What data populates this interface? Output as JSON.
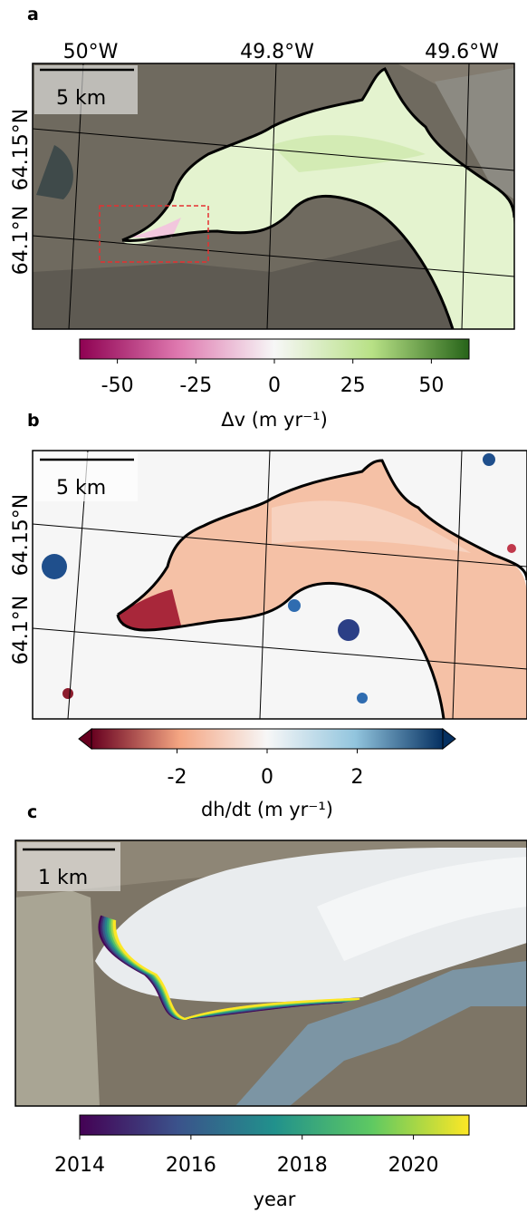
{
  "panels": {
    "a": {
      "label": "a",
      "lon_ticks": [
        "50°W",
        "49.8°W",
        "49.6°W"
      ],
      "lat_ticks": [
        "64.15°N",
        "64.1°N"
      ],
      "scale_bar": "5 km",
      "colorbar": {
        "label": "Δv (m yr⁻¹)",
        "ticks": [
          "-50",
          "-25",
          "0",
          "25",
          "50"
        ],
        "tick_values": [
          -50,
          -25,
          0,
          25,
          50
        ],
        "range": [
          -62,
          62
        ],
        "colormap": "PiYG",
        "colors": [
          "#8e0152",
          "#de77ae",
          "#f7f7f7",
          "#b8e186",
          "#276419"
        ]
      }
    },
    "b": {
      "label": "b",
      "lat_ticks": [
        "64.15°N",
        "64.1°N"
      ],
      "scale_bar": "5 km",
      "colorbar": {
        "label": "dh/dt (m yr⁻¹)",
        "ticks": [
          "-2",
          "0",
          "2"
        ],
        "tick_values": [
          -2,
          0,
          2
        ],
        "range": [
          -3.9,
          3.9
        ],
        "extend": "both",
        "colormap": "RdBu",
        "colors": [
          "#67001f",
          "#f4a582",
          "#f7f7f7",
          "#92c5de",
          "#053061"
        ]
      }
    },
    "c": {
      "label": "c",
      "scale_bar": "1 km",
      "colorbar": {
        "label": "year",
        "ticks": [
          "2014",
          "2016",
          "2018",
          "2020"
        ],
        "tick_values": [
          2014,
          2016,
          2018,
          2020
        ],
        "range": [
          2014,
          2021
        ],
        "colormap": "viridis",
        "colors": [
          "#440154",
          "#3b528b",
          "#21918c",
          "#5ec962",
          "#fde725"
        ]
      }
    }
  },
  "chart_data": [
    {
      "type": "heatmap",
      "panel": "a",
      "quantity": "Δv (m yr⁻¹)",
      "colormap": "PiYG",
      "vlim": [
        -62,
        62
      ],
      "lon_ticks": [
        "50°W",
        "49.8°W",
        "49.6°W"
      ],
      "lat_ticks": [
        "64.15°N",
        "64.1°N"
      ],
      "glacier_typical_dv": 20,
      "margin_dv": -20,
      "scale": "5 km"
    },
    {
      "type": "heatmap",
      "panel": "b",
      "quantity": "dh/dt (m yr⁻¹)",
      "colormap": "RdBu",
      "vlim": [
        -3.9,
        3.9
      ],
      "lat_ticks": [
        "64.15°N",
        "64.1°N"
      ],
      "glacier_typical_dhdt": -1,
      "terminus_dhdt": -3.5,
      "scale": "5 km"
    },
    {
      "type": "line",
      "panel": "c",
      "description_of_lines": "terminus positions colored by year",
      "years": [
        2014,
        2015,
        2016,
        2017,
        2018,
        2019,
        2020,
        2021
      ],
      "colormap": "viridis",
      "scale": "1 km"
    }
  ]
}
